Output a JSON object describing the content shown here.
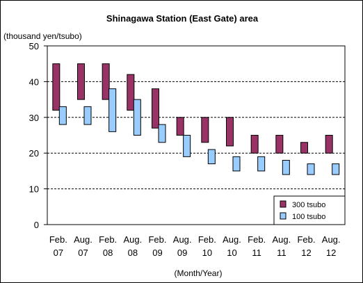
{
  "chart_data": {
    "type": "bar",
    "subtype": "floating-range",
    "title": "Shinagawa Station (East Gate) area",
    "ylabel": "(thousand yen/tsubo)",
    "xlabel": "(Month/Year)",
    "ylim": [
      0,
      50
    ],
    "yticks": [
      0,
      10,
      20,
      30,
      40,
      50
    ],
    "grid": "dashed-horizontal",
    "legend_position": "bottom-right",
    "categories": [
      {
        "month": "Feb.",
        "year": "07"
      },
      {
        "month": "Aug.",
        "year": "07"
      },
      {
        "month": "Feb.",
        "year": "08"
      },
      {
        "month": "Aug.",
        "year": "08"
      },
      {
        "month": "Feb.",
        "year": "09"
      },
      {
        "month": "Aug.",
        "year": "09"
      },
      {
        "month": "Feb.",
        "year": "10"
      },
      {
        "month": "Aug.",
        "year": "10"
      },
      {
        "month": "Feb.",
        "year": "11"
      },
      {
        "month": "Aug.",
        "year": "11"
      },
      {
        "month": "Feb.",
        "year": "12"
      },
      {
        "month": "Aug.",
        "year": "12"
      }
    ],
    "series": [
      {
        "name": "300 tsubo",
        "color": "#993366",
        "ranges": [
          [
            32,
            45
          ],
          [
            35,
            45
          ],
          [
            35,
            45
          ],
          [
            32,
            42
          ],
          [
            27,
            38
          ],
          [
            25,
            30
          ],
          [
            23,
            30
          ],
          [
            22,
            30
          ],
          [
            20,
            25
          ],
          [
            20,
            25
          ],
          [
            20,
            23
          ],
          [
            20,
            25
          ]
        ]
      },
      {
        "name": "100 tsubo",
        "color": "#99CCFF",
        "ranges": [
          [
            28,
            33
          ],
          [
            28,
            33
          ],
          [
            26,
            38
          ],
          [
            25,
            35
          ],
          [
            23,
            28
          ],
          [
            19,
            25
          ],
          [
            17,
            21
          ],
          [
            15,
            19
          ],
          [
            15,
            19
          ],
          [
            14,
            18
          ],
          [
            14,
            17
          ],
          [
            14,
            17
          ]
        ]
      }
    ]
  }
}
